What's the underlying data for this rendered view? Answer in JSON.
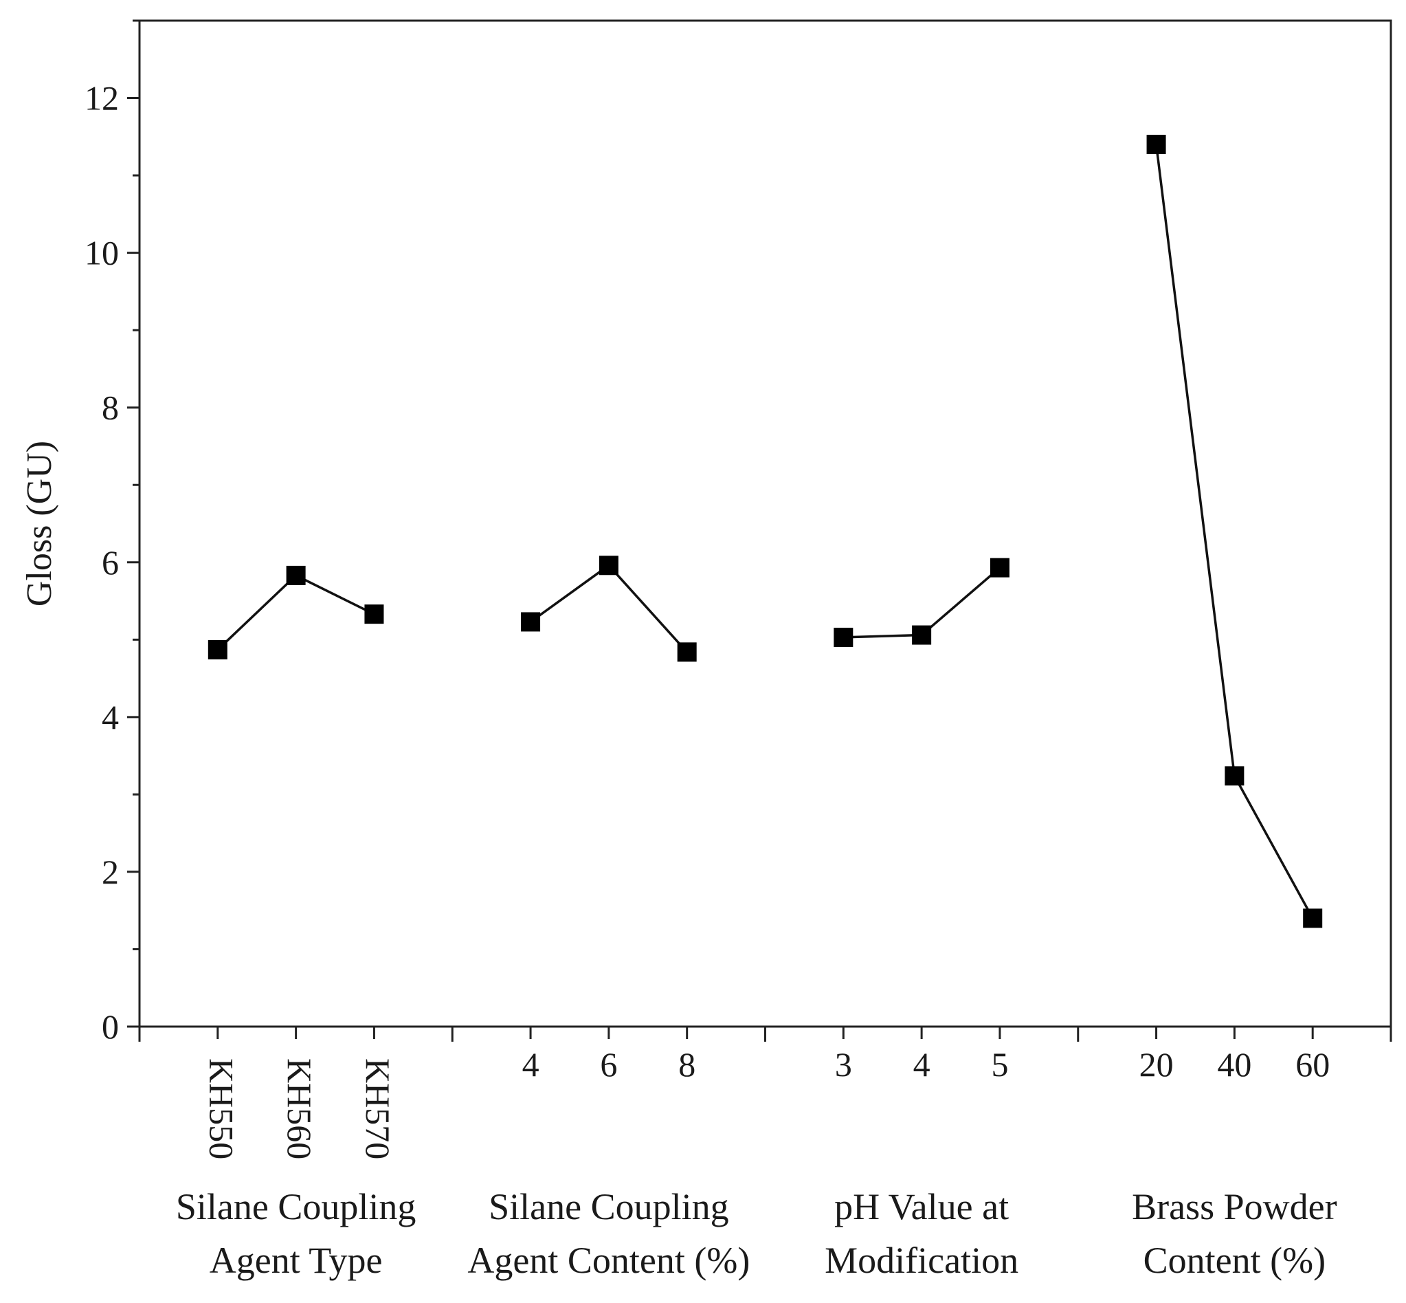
{
  "chart_data": {
    "type": "line",
    "title": "",
    "ylabel": "Gloss (GU)",
    "ylim": [
      0,
      13
    ],
    "yticks": [
      0,
      2,
      4,
      6,
      8,
      10,
      12
    ],
    "y_minor_step": 1,
    "grid": false,
    "colors": {
      "line": "#111111",
      "marker": "#000000",
      "axis": "#222222"
    },
    "groups": [
      {
        "name": "Silane Coupling Agent Type",
        "title_lines": [
          "Silane Coupling",
          "Agent Type"
        ],
        "categories": [
          "KH550",
          "KH560",
          "KH570"
        ],
        "values": [
          4.87,
          5.83,
          5.33
        ],
        "rotated_labels": true
      },
      {
        "name": "Silane Coupling Agent Content (%)",
        "title_lines": [
          "Silane Coupling",
          "Agent Content (%)"
        ],
        "categories": [
          "4",
          "6",
          "8"
        ],
        "values": [
          5.23,
          5.96,
          4.84
        ],
        "rotated_labels": false
      },
      {
        "name": "pH Value at Modification",
        "title_lines": [
          "pH Value at",
          "Modification"
        ],
        "categories": [
          "3",
          "4",
          "5"
        ],
        "values": [
          5.03,
          5.06,
          5.93
        ],
        "rotated_labels": false
      },
      {
        "name": "Brass Powder Content (%)",
        "title_lines": [
          "Brass Powder",
          "Content (%)"
        ],
        "categories": [
          "20",
          "40",
          "60"
        ],
        "values": [
          11.4,
          3.24,
          1.4
        ],
        "rotated_labels": false
      }
    ]
  }
}
